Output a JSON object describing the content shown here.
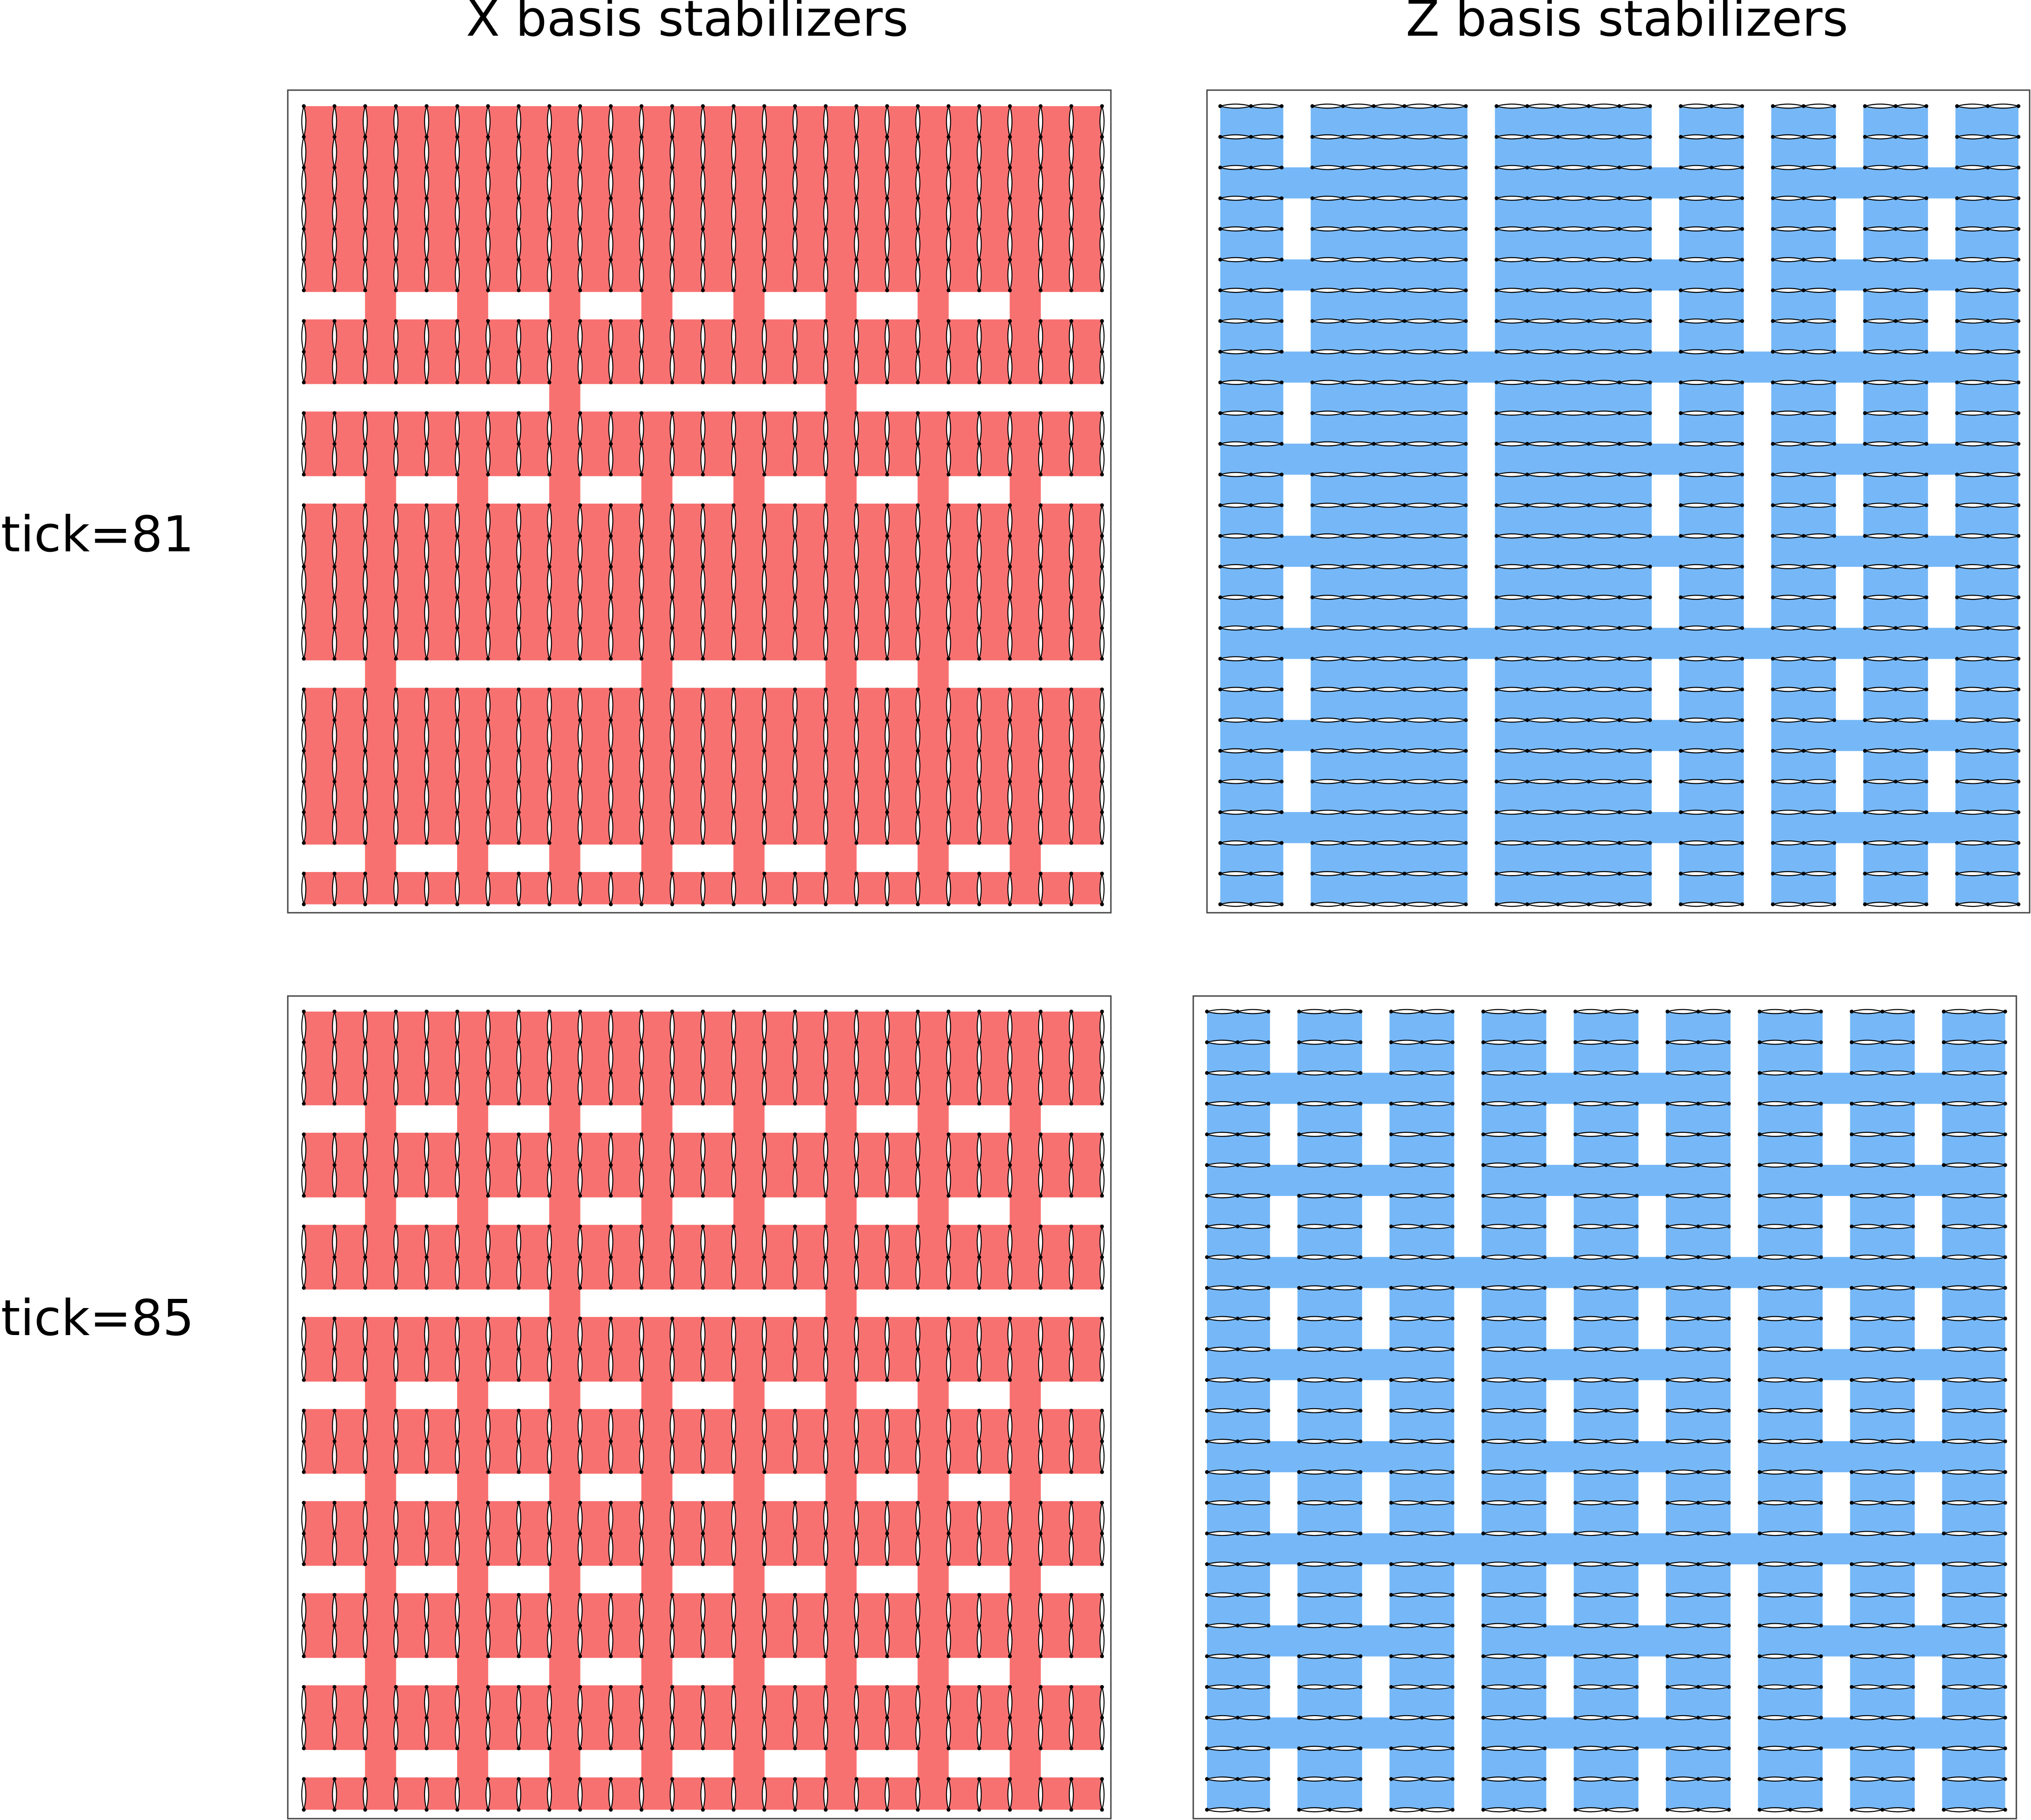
{
  "columns": [
    {
      "title": "X basis stabilizers"
    },
    {
      "title": "Z basis stabilizers"
    }
  ],
  "rows": [
    {
      "label": "tick=81"
    },
    {
      "label": "tick=85"
    }
  ],
  "colors": {
    "x_fill": "#f87171",
    "z_fill": "#76b8f7",
    "outline": "#000000",
    "frame": "#444444",
    "background": "#ffffff"
  },
  "lattice": {
    "columns": 27,
    "rows": 27
  },
  "panels": [
    {
      "id": "x-tick81",
      "basis": "X",
      "row_breaks": [
        6,
        9,
        12,
        18,
        24
      ],
      "connectors": [
        {
          "break": 6,
          "at_columns": [
            2,
            5,
            8,
            11,
            14,
            17,
            20,
            23
          ]
        },
        {
          "break": 9,
          "at_columns": [
            8,
            17
          ]
        },
        {
          "break": 12,
          "at_columns": [
            2,
            5,
            8,
            11,
            14,
            17,
            20,
            23
          ]
        },
        {
          "break": 18,
          "at_columns": [
            2,
            11,
            17,
            20
          ]
        },
        {
          "break": 24,
          "at_columns": [
            2,
            5,
            8,
            11,
            14,
            17,
            20,
            23
          ]
        }
      ]
    },
    {
      "id": "z-tick81",
      "basis": "Z",
      "column_breaks": [
        2,
        8,
        14,
        17,
        20,
        23
      ],
      "connectors": [
        {
          "break": 2,
          "at_rows": [
            2,
            5,
            8,
            11,
            14,
            17,
            20,
            23
          ]
        },
        {
          "break": 8,
          "at_rows": [
            8,
            17
          ]
        },
        {
          "break": 14,
          "at_rows": [
            2,
            5,
            8,
            11,
            14,
            17,
            20,
            23
          ]
        },
        {
          "break": 17,
          "at_rows": [
            8,
            17
          ]
        },
        {
          "break": 20,
          "at_rows": [
            2,
            5,
            8,
            11,
            14,
            17,
            20,
            23
          ]
        },
        {
          "break": 23,
          "at_rows": [
            2,
            5,
            8,
            11,
            14,
            17,
            20,
            23
          ]
        }
      ]
    },
    {
      "id": "x-tick85",
      "basis": "X",
      "row_breaks": [
        3,
        6,
        9,
        12,
        15,
        18,
        21,
        24
      ],
      "connectors": [
        {
          "break": 3,
          "at_columns": [
            2,
            5,
            8,
            11,
            14,
            17,
            20,
            23
          ]
        },
        {
          "break": 6,
          "at_columns": [
            2,
            5,
            8,
            11,
            14,
            17,
            20,
            23
          ]
        },
        {
          "break": 9,
          "at_columns": [
            8,
            17
          ]
        },
        {
          "break": 12,
          "at_columns": [
            2,
            5,
            8,
            11,
            14,
            17,
            20,
            23
          ]
        },
        {
          "break": 15,
          "at_columns": [
            2,
            5,
            8,
            11,
            14,
            17,
            20,
            23
          ]
        },
        {
          "break": 18,
          "at_columns": [
            2,
            5,
            8,
            11,
            14,
            17,
            20,
            23
          ]
        },
        {
          "break": 21,
          "at_columns": [
            2,
            5,
            8,
            11,
            14,
            17,
            20,
            23
          ]
        },
        {
          "break": 24,
          "at_columns": [
            2,
            5,
            8,
            11,
            14,
            17,
            20,
            23
          ]
        }
      ]
    },
    {
      "id": "z-tick85",
      "basis": "Z",
      "column_breaks": [
        2,
        5,
        8,
        11,
        14,
        17,
        20,
        23
      ],
      "connectors": [
        {
          "break": 2,
          "at_rows": [
            2,
            5,
            8,
            11,
            14,
            17,
            20,
            23
          ]
        },
        {
          "break": 5,
          "at_rows": [
            2,
            5,
            8,
            11,
            14,
            17,
            20,
            23
          ]
        },
        {
          "break": 8,
          "at_rows": [
            8,
            17
          ]
        },
        {
          "break": 11,
          "at_rows": [
            2,
            5,
            8,
            11,
            14,
            17,
            20,
            23
          ]
        },
        {
          "break": 14,
          "at_rows": [
            2,
            5,
            8,
            11,
            14,
            17,
            20,
            23
          ]
        },
        {
          "break": 17,
          "at_rows": [
            8,
            17
          ]
        },
        {
          "break": 20,
          "at_rows": [
            2,
            5,
            8,
            11,
            14,
            17,
            20,
            23
          ]
        },
        {
          "break": 23,
          "at_rows": [
            2,
            5,
            8,
            11,
            14,
            17,
            20,
            23
          ]
        }
      ]
    }
  ]
}
